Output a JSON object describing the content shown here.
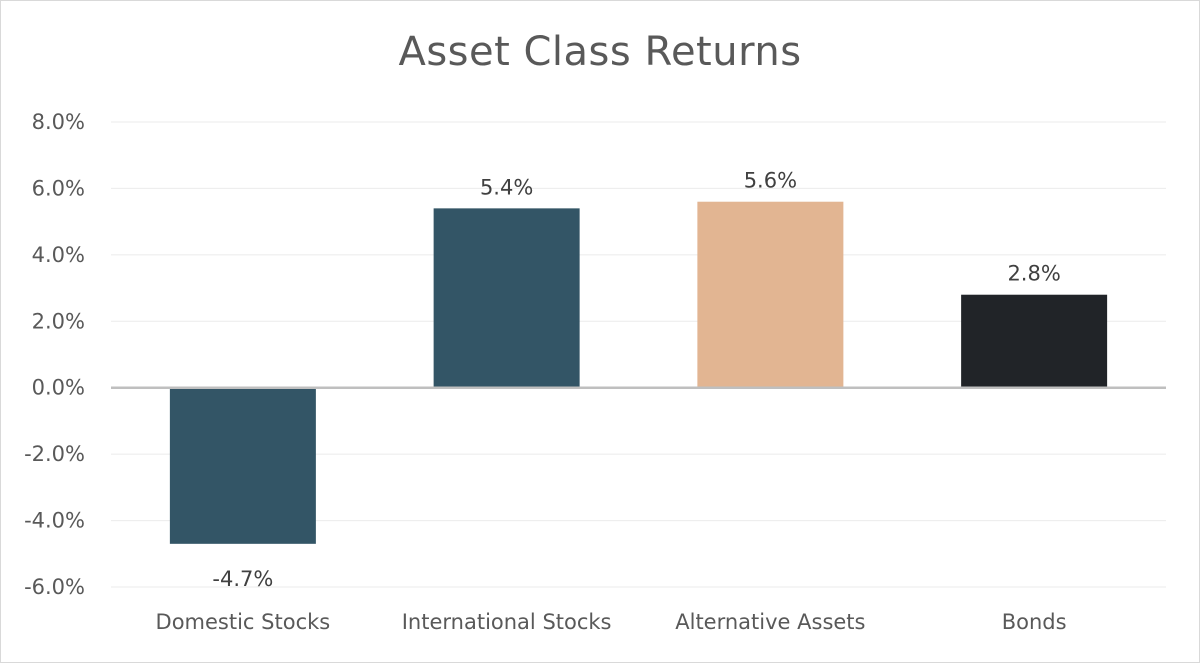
{
  "chart_data": {
    "type": "bar",
    "title": "Asset Class Returns",
    "xlabel": "",
    "ylabel": "",
    "categories": [
      "Domestic Stocks",
      "International Stocks",
      "Alternative Assets",
      "Bonds"
    ],
    "values": [
      -4.7,
      5.4,
      5.6,
      2.8
    ],
    "data_labels": [
      "-4.7%",
      "5.4%",
      "5.6%",
      "2.8%"
    ],
    "bar_colors": [
      "#335566",
      "#335566",
      "#e2b592",
      "#212428"
    ],
    "ylim": [
      -6,
      8
    ],
    "yticks": [
      8,
      6,
      4,
      2,
      0,
      -2,
      -4,
      -6
    ],
    "ytick_labels": [
      "8.0%",
      "6.0%",
      "4.0%",
      "2.0%",
      "0.0%",
      "-2.0%",
      "-4.0%",
      "-6.0%"
    ],
    "grid": true,
    "legend": "none",
    "colors": {
      "gridline": "#ebebeb",
      "zero_axis": "#bfbfbf",
      "text": "#595959"
    }
  }
}
